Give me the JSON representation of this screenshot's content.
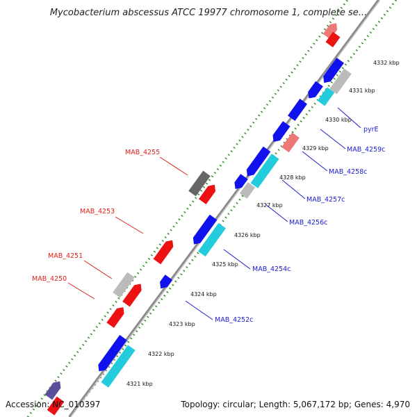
{
  "title": "Mycobacterium abscessus ATCC 19977 chromosome 1, complete se...",
  "footer": {
    "accession": "Accession: NC_010397",
    "summary": "Topology: circular; Length: 5,067,172 bp; Genes: 4,970"
  },
  "colors": {
    "background": "#ffffff",
    "backbone": "#8a8a8a",
    "tick_dots": "#2e8b22",
    "label_red": "#e0201a",
    "label_blue": "#1a1acc",
    "gene_red": "#ee1111",
    "gene_blue": "#1111ee",
    "gene_cyan": "#22ccdd",
    "gene_gray": "#bbbbbb",
    "gene_dark_gray": "#666666",
    "gene_pink": "#ee7777",
    "gene_purple": "#5a4f9a"
  },
  "kbp_ticks": [
    "4321 kbp",
    "4322 kbp",
    "4323 kbp",
    "4324 kbp",
    "4325 kbp",
    "4326 kbp",
    "4327 kbp",
    "4328 kbp",
    "4329 kbp",
    "4330 kbp",
    "4331 kbp",
    "4332 kbp"
  ],
  "gene_labels": {
    "left": [
      "MAB_4255",
      "MAB_4253",
      "MAB_4251",
      "MAB_4250"
    ],
    "right": [
      "pyrE",
      "MAB_4259c",
      "MAB_4258c",
      "MAB_4257c",
      "MAB_4256c",
      "MAB_4254c",
      "MAB_4252c"
    ]
  }
}
